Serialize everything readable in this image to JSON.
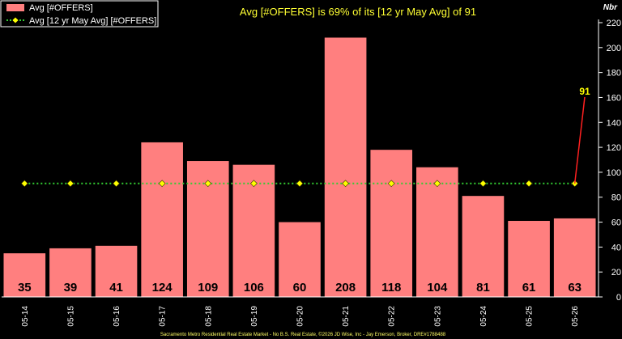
{
  "chart_data": {
    "type": "bar",
    "title": "Avg [#OFFERS] is 69% of its [12 yr May Avg] of 91",
    "unit_label": "Nbr",
    "categories": [
      "05-14",
      "05-15",
      "05-16",
      "05-17",
      "05-18",
      "05-19",
      "05-20",
      "05-21",
      "05-22",
      "05-23",
      "05-24",
      "05-25",
      "05-26"
    ],
    "series": [
      {
        "name": "Avg [#OFFERS]",
        "type": "bar",
        "color": "#ff7f7f",
        "values": [
          35,
          39,
          41,
          124,
          109,
          106,
          60,
          208,
          118,
          104,
          81,
          61,
          63
        ]
      },
      {
        "name": "Avg [12 yr May Avg] [#OFFERS]",
        "type": "line",
        "color": "#33cc33",
        "marker_color": "#ffff00",
        "values": [
          91,
          91,
          91,
          91,
          91,
          91,
          91,
          91,
          91,
          91,
          91,
          91,
          91
        ]
      }
    ],
    "callout": {
      "label": "91",
      "value": 91
    },
    "y_axis": {
      "position": "right",
      "ylim": [
        0,
        220
      ],
      "ticks": [
        0,
        20,
        40,
        60,
        80,
        100,
        120,
        140,
        160,
        180,
        200,
        220
      ]
    },
    "legend": "top-left",
    "grid": false,
    "footer": "Sacramento Metro Residential Real Estate Market - No B.S. Real Estate, ©2026 JD Wise, Inc - Jay Emerson, Broker, DRE#1788488"
  }
}
